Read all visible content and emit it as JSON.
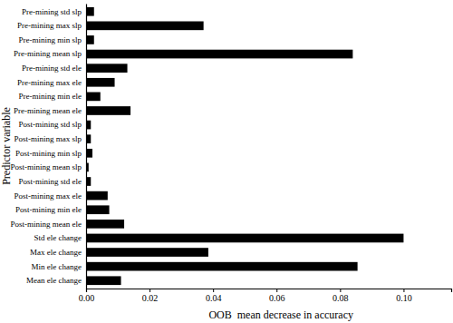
{
  "chart_data": {
    "type": "bar",
    "orientation": "horizontal",
    "color": "#000000",
    "grid": false,
    "x_label": "OOB  mean decrease in accuracy",
    "y_label": "Predictor variable",
    "categories": [
      "Pre-mining std slp",
      "Pre-mining max slp",
      "Pre-mining min slp",
      "Pre-mining mean slp",
      "Pre-mining std ele",
      "Pre-mining max ele",
      "Pre-mining min ele",
      "Pre-mining mean ele",
      "Post-mining std slp",
      "Post-mining max slp",
      "Post-mining min slp",
      "Post-mining mean slp",
      "Post-mining std ele",
      "Post-mining max ele",
      "Post-mining min ele",
      "Post-mining mean ele",
      "Std ele change",
      "Max ele change",
      "Min ele change",
      "Mean ele change"
    ],
    "values": [
      0.0025,
      0.037,
      0.0025,
      0.084,
      0.013,
      0.009,
      0.0045,
      0.014,
      0.0015,
      0.0015,
      0.002,
      0.0008,
      0.0015,
      0.0068,
      0.0073,
      0.012,
      0.1,
      0.0385,
      0.0855,
      0.011
    ],
    "xlim": [
      0,
      0.115
    ],
    "xticks": [
      {
        "value": 0,
        "label": "0.00"
      },
      {
        "value": 0.02,
        "label": "0.02"
      },
      {
        "value": 0.04,
        "label": "0.04"
      },
      {
        "value": 0.06,
        "label": "0.06"
      },
      {
        "value": 0.08,
        "label": "0.08"
      },
      {
        "value": 0.1,
        "label": "0.10"
      }
    ]
  }
}
